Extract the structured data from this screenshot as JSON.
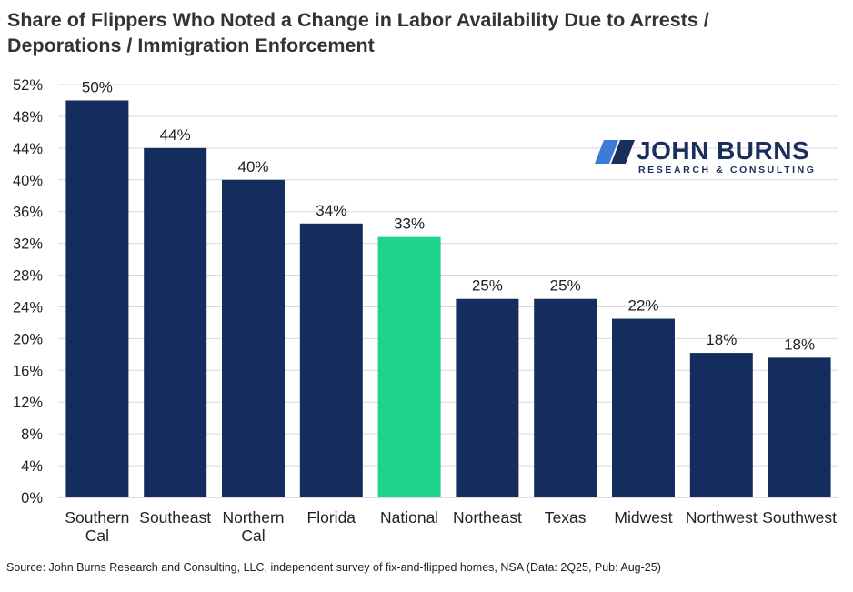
{
  "title_lines": [
    "Share of Flippers Who Noted a Change in Labor Availability Due to Arrests /",
    "Deporations / Immigration Enforcement"
  ],
  "source": "Source: John Burns Research and Consulting, LLC, independent survey of fix-and-flipped homes, NSA (Data: 2Q25, Pub: Aug-25)",
  "logo": {
    "name": "JOHN BURNS",
    "tagline": "RESEARCH & CONSULTING"
  },
  "colors": {
    "bar": "#142d5e",
    "highlight": "#1fd38a",
    "grid": "#d9d9d9",
    "text": "#222222",
    "logo": "#1a2f5c",
    "logo_accent": "#3a7bd5"
  },
  "chart_data": {
    "type": "bar",
    "categories": [
      [
        "Southern",
        "Cal"
      ],
      [
        "Southeast"
      ],
      [
        "Northern",
        "Cal"
      ],
      [
        "Florida"
      ],
      [
        "National"
      ],
      [
        "Northeast"
      ],
      [
        "Texas"
      ],
      [
        "Midwest"
      ],
      [
        "Northwest"
      ],
      [
        "Southwest"
      ]
    ],
    "values": [
      50,
      44,
      40,
      34.5,
      32.8,
      25,
      25,
      22.5,
      18.2,
      17.6
    ],
    "data_labels": [
      "50%",
      "44%",
      "40%",
      "34%",
      "33%",
      "25%",
      "25%",
      "22%",
      "18%",
      "18%"
    ],
    "highlight_index": 4,
    "ylim": [
      0,
      52
    ],
    "yticks": [
      0,
      4,
      8,
      12,
      16,
      20,
      24,
      28,
      32,
      36,
      40,
      44,
      48,
      52
    ],
    "ytick_labels": [
      "0%",
      "4%",
      "8%",
      "12%",
      "16%",
      "20%",
      "24%",
      "28%",
      "32%",
      "36%",
      "40%",
      "44%",
      "48%",
      "52%"
    ],
    "grid": true,
    "legend": "none"
  }
}
